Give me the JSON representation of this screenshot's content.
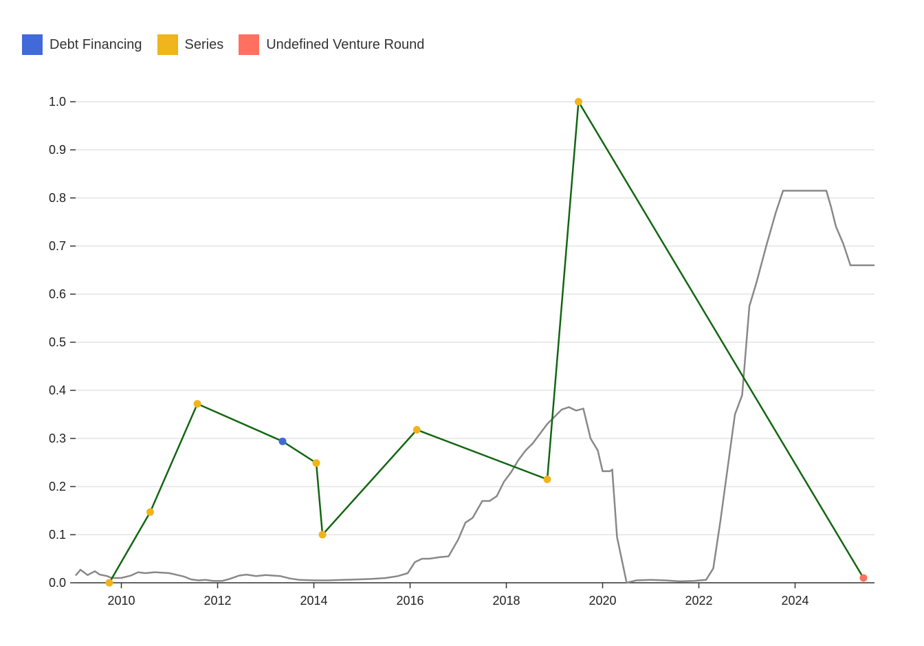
{
  "legend": [
    {
      "label": "Debt Financing",
      "color": "#4169d9"
    },
    {
      "label": "Series",
      "color": "#f0b41c"
    },
    {
      "label": "Undefined Venture Round",
      "color": "#ff7060"
    }
  ],
  "chart_data": {
    "type": "line",
    "title": "",
    "xlabel": "",
    "ylabel": "",
    "xlim": [
      2009.05,
      2025.65
    ],
    "ylim": [
      0,
      1.0
    ],
    "x_ticks": [
      2010,
      2012,
      2014,
      2016,
      2018,
      2020,
      2022,
      2024
    ],
    "y_ticks": [
      0.0,
      0.1,
      0.2,
      0.3,
      0.4,
      0.5,
      0.6,
      0.7,
      0.8,
      0.9,
      1.0
    ],
    "grid": "horizontal",
    "legend_position": "top-left",
    "series": [
      {
        "color": "#116611",
        "points": [
          {
            "x": 2009.75,
            "y": 0.0,
            "category": "Series"
          },
          {
            "x": 2010.6,
            "y": 0.147,
            "category": "Series"
          },
          {
            "x": 2011.58,
            "y": 0.372,
            "category": "Series"
          },
          {
            "x": 2013.35,
            "y": 0.294,
            "category": "Debt Financing"
          },
          {
            "x": 2014.05,
            "y": 0.249,
            "category": "Series"
          },
          {
            "x": 2014.18,
            "y": 0.1,
            "category": "Series"
          },
          {
            "x": 2016.14,
            "y": 0.318,
            "category": "Series"
          },
          {
            "x": 2018.85,
            "y": 0.215,
            "category": "Series"
          },
          {
            "x": 2019.5,
            "y": 1.0,
            "category": "Series"
          },
          {
            "x": 2025.42,
            "y": 0.01,
            "category": "Undefined Venture Round"
          }
        ]
      },
      {
        "color": "#888888",
        "x": [
          2009.05,
          2009.15,
          2009.3,
          2009.45,
          2009.55,
          2009.7,
          2009.8,
          2010.0,
          2010.2,
          2010.35,
          2010.5,
          2010.7,
          2011.0,
          2011.3,
          2011.45,
          2011.6,
          2011.75,
          2011.9,
          2012.1,
          2012.25,
          2012.45,
          2012.6,
          2012.8,
          2013.0,
          2013.3,
          2013.5,
          2013.7,
          2014.0,
          2014.3,
          2014.6,
          2014.9,
          2015.2,
          2015.5,
          2015.75,
          2015.95,
          2016.1,
          2016.25,
          2016.4,
          2016.6,
          2016.8,
          2017.0,
          2017.15,
          2017.3,
          2017.5,
          2017.65,
          2017.8,
          2017.95,
          2018.1,
          2018.25,
          2018.4,
          2018.55,
          2018.7,
          2018.85,
          2019.0,
          2019.15,
          2019.3,
          2019.45,
          2019.6,
          2019.75,
          2019.9,
          2020.0,
          2020.15,
          2020.2,
          2020.3,
          2020.5,
          2020.7,
          2021.0,
          2021.3,
          2021.6,
          2021.9,
          2022.15,
          2022.3,
          2022.45,
          2022.6,
          2022.75,
          2022.9,
          2023.05,
          2023.2,
          2023.4,
          2023.6,
          2023.75,
          2024.0,
          2024.3,
          2024.65,
          2024.75,
          2024.85,
          2025.0,
          2025.15,
          2025.65
        ],
        "y": [
          0.015,
          0.027,
          0.016,
          0.024,
          0.017,
          0.014,
          0.01,
          0.01,
          0.015,
          0.022,
          0.02,
          0.022,
          0.02,
          0.013,
          0.007,
          0.005,
          0.006,
          0.004,
          0.004,
          0.008,
          0.015,
          0.017,
          0.014,
          0.016,
          0.014,
          0.009,
          0.006,
          0.005,
          0.005,
          0.006,
          0.007,
          0.008,
          0.01,
          0.014,
          0.02,
          0.043,
          0.05,
          0.05,
          0.053,
          0.055,
          0.09,
          0.125,
          0.135,
          0.17,
          0.17,
          0.18,
          0.21,
          0.23,
          0.255,
          0.275,
          0.29,
          0.31,
          0.33,
          0.345,
          0.36,
          0.365,
          0.358,
          0.362,
          0.3,
          0.275,
          0.232,
          0.232,
          0.235,
          0.095,
          0.0,
          0.005,
          0.006,
          0.005,
          0.003,
          0.004,
          0.006,
          0.03,
          0.13,
          0.24,
          0.35,
          0.39,
          0.575,
          0.625,
          0.7,
          0.77,
          0.815,
          0.815,
          0.815,
          0.815,
          0.78,
          0.74,
          0.705,
          0.66,
          0.66
        ]
      }
    ]
  }
}
